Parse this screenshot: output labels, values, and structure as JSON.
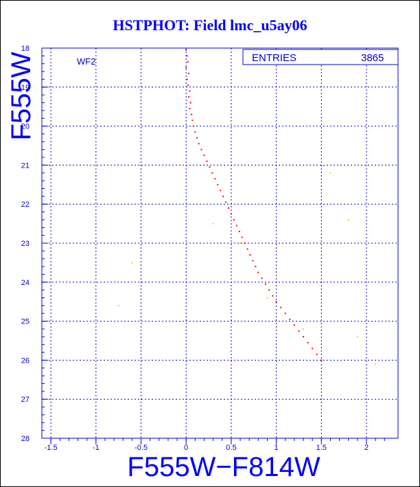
{
  "title": "HSTPHOT: Field lmc_u5ay06",
  "chart_data": {
    "type": "scatter",
    "title": "HSTPHOT: Field lmc_u5ay06",
    "xlabel": "F555W−F814W",
    "ylabel": "F555W",
    "xlim": [
      -1.6,
      2.35
    ],
    "ylim": [
      28,
      18
    ],
    "y_inverted": true,
    "x_ticks": [
      "-1.5",
      "-1",
      "-0.5",
      "0",
      "0.5",
      "1",
      "1.5",
      "2"
    ],
    "x_tick_values": [
      -1.5,
      -1,
      -0.5,
      0,
      0.5,
      1,
      1.5,
      2
    ],
    "y_ticks": [
      "18",
      "19",
      "20",
      "21",
      "22",
      "23",
      "24",
      "25",
      "26",
      "27",
      "28"
    ],
    "y_tick_values": [
      18,
      19,
      20,
      21,
      22,
      23,
      24,
      25,
      26,
      27,
      28
    ],
    "grid": true,
    "panel_label": "WF2",
    "stats_box": {
      "label": "ENTRIES",
      "value": "3865",
      "placement": "top-right"
    },
    "series": [
      {
        "color": "#ff0000",
        "description_key": "main",
        "values": [
          [
            0.0,
            18.05
          ],
          [
            0.01,
            18.2
          ],
          [
            0.02,
            18.35
          ],
          [
            0.0,
            18.5
          ],
          [
            0.03,
            18.65
          ],
          [
            0.01,
            18.8
          ],
          [
            0.02,
            18.95
          ],
          [
            0.04,
            19.1
          ],
          [
            0.03,
            19.25
          ],
          [
            0.05,
            19.4
          ],
          [
            0.04,
            19.55
          ],
          [
            0.06,
            19.7
          ],
          [
            0.07,
            19.85
          ],
          [
            0.08,
            20.0
          ],
          [
            0.1,
            20.15
          ],
          [
            0.12,
            20.3
          ],
          [
            0.14,
            20.45
          ],
          [
            0.17,
            20.6
          ],
          [
            0.2,
            20.75
          ],
          [
            0.23,
            20.9
          ],
          [
            0.26,
            21.05
          ],
          [
            0.29,
            21.2
          ],
          [
            0.32,
            21.35
          ],
          [
            0.35,
            21.5
          ],
          [
            0.38,
            21.65
          ],
          [
            0.41,
            21.8
          ],
          [
            0.44,
            21.95
          ],
          [
            0.47,
            22.1
          ],
          [
            0.5,
            22.25
          ],
          [
            0.53,
            22.4
          ],
          [
            0.56,
            22.55
          ],
          [
            0.59,
            22.7
          ],
          [
            0.62,
            22.85
          ],
          [
            0.65,
            23.0
          ],
          [
            0.68,
            23.15
          ],
          [
            0.71,
            23.3
          ],
          [
            0.74,
            23.45
          ],
          [
            0.77,
            23.6
          ],
          [
            0.8,
            23.75
          ],
          [
            0.84,
            23.9
          ],
          [
            0.88,
            24.05
          ],
          [
            0.92,
            24.2
          ],
          [
            0.96,
            24.35
          ],
          [
            1.0,
            24.5
          ],
          [
            1.05,
            24.65
          ],
          [
            1.1,
            24.8
          ],
          [
            1.15,
            24.95
          ],
          [
            1.2,
            25.1
          ],
          [
            1.25,
            25.25
          ],
          [
            1.3,
            25.4
          ],
          [
            1.35,
            25.55
          ],
          [
            1.4,
            25.7
          ],
          [
            1.45,
            25.85
          ],
          [
            1.5,
            26.0
          ]
        ]
      },
      {
        "color": "#ffcc00",
        "description_key": "secondary",
        "values": [
          [
            0.3,
            22.5
          ],
          [
            0.6,
            23.0
          ],
          [
            0.9,
            24.4
          ],
          [
            1.3,
            25.2
          ],
          [
            -0.6,
            23.5
          ],
          [
            -0.75,
            24.6
          ],
          [
            1.9,
            25.4
          ],
          [
            2.1,
            26.1
          ],
          [
            1.6,
            21.2
          ],
          [
            1.8,
            22.4
          ]
        ]
      }
    ]
  }
}
